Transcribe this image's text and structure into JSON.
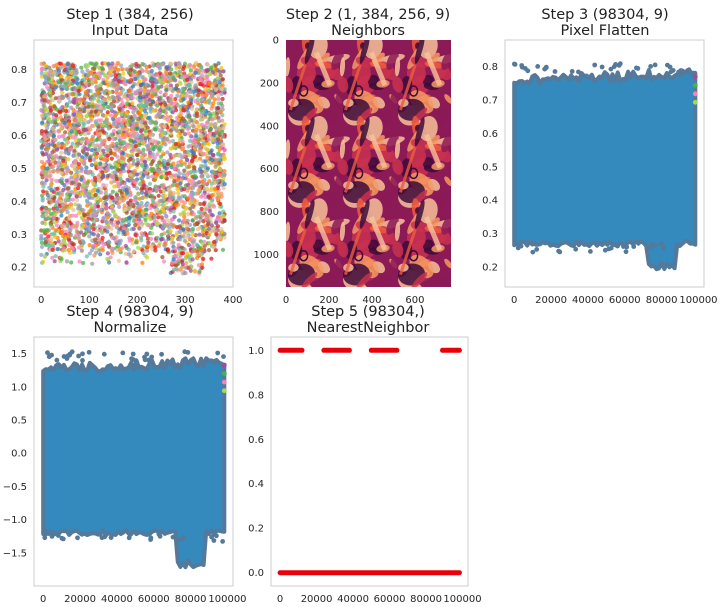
{
  "figure": {
    "background": "#ffffff",
    "frame_color": "#cccccc"
  },
  "chart_data": [
    {
      "id": "step1",
      "type": "scatter",
      "title_line1": "Step 1 (384, 256)",
      "title_line2": "Input Data",
      "xlabel": "",
      "ylabel": "",
      "grid": false,
      "xlim": [
        -15,
        400
      ],
      "ylim": [
        0.14,
        0.89
      ],
      "x_ticks": [
        0,
        100,
        200,
        300,
        400
      ],
      "x_tick_labels": [
        "0",
        "100",
        "200",
        "300",
        "400"
      ],
      "y_ticks": [
        0.2,
        0.3,
        0.4,
        0.5,
        0.6,
        0.7,
        0.8
      ],
      "y_tick_labels": [
        "0.2",
        "0.3",
        "0.4",
        "0.5",
        "0.6",
        "0.7",
        "0.8"
      ],
      "x_range": [
        0,
        383
      ],
      "value_band": [
        0.25,
        0.82
      ],
      "dip": {
        "x_start": 270,
        "x_end": 340,
        "low": 0.18
      },
      "n_series": 256,
      "series_colors": [
        "#e41a1c",
        "#377eb8",
        "#4daf4a",
        "#984ea3",
        "#ff7f00",
        "#f0c419",
        "#a65628",
        "#f781bf",
        "#999999",
        "#66c2a5",
        "#fc8d62",
        "#8da0cb",
        "#e78ac3",
        "#a6d854",
        "#e5c494"
      ]
    },
    {
      "id": "step2",
      "type": "heatmap",
      "title_line1": "Step 2 (1, 384, 256, 9)",
      "title_line2": "Neighbors",
      "xlabel": "",
      "ylabel": "",
      "grid": false,
      "image_shape": [
        1152,
        768
      ],
      "tile_grid": [
        3,
        3
      ],
      "xlim": [
        0,
        768
      ],
      "ylim": [
        1152,
        0
      ],
      "x_ticks": [
        0,
        200,
        400,
        600
      ],
      "x_tick_labels": [
        "0",
        "200",
        "400",
        "600"
      ],
      "y_ticks": [
        0,
        200,
        400,
        600,
        800,
        1000
      ],
      "y_tick_labels": [
        "0",
        "200",
        "400",
        "600",
        "800",
        "1000"
      ],
      "colormap": [
        "#3d0a3a",
        "#8b1a56",
        "#c8314f",
        "#ec5b3e",
        "#f59a63",
        "#f8c29a"
      ]
    },
    {
      "id": "step3",
      "type": "scatter",
      "title_line1": "Step 3 (98304, 9)",
      "title_line2": "Pixel Flatten",
      "xlabel": "",
      "ylabel": "",
      "grid": false,
      "xlim": [
        -5000,
        103000
      ],
      "ylim": [
        0.14,
        0.88
      ],
      "x_ticks": [
        0,
        20000,
        40000,
        60000,
        80000,
        100000
      ],
      "x_tick_labels": [
        "0",
        "20000",
        "40000",
        "60000",
        "80000",
        "100000"
      ],
      "y_ticks": [
        0.2,
        0.3,
        0.4,
        0.5,
        0.6,
        0.7,
        0.8
      ],
      "y_tick_labels": [
        "0.2",
        "0.3",
        "0.4",
        "0.5",
        "0.6",
        "0.7",
        "0.8"
      ],
      "x_range": [
        0,
        98304
      ],
      "band": {
        "low": 0.27,
        "high": 0.78
      },
      "dip": {
        "x_start": 72000,
        "x_end": 88000,
        "low": 0.19
      },
      "fill_color": "#3489bd",
      "edge_color": "#55799a"
    },
    {
      "id": "step4",
      "type": "scatter",
      "title_line1": "Step 4 (98304, 9)",
      "title_line2": "Normalize",
      "xlabel": "",
      "ylabel": "",
      "grid": false,
      "xlim": [
        -5000,
        103000
      ],
      "ylim": [
        -2.0,
        1.75
      ],
      "x_ticks": [
        0,
        20000,
        40000,
        60000,
        80000,
        100000
      ],
      "x_tick_labels": [
        "0",
        "20000",
        "40000",
        "60000",
        "80000",
        "100000"
      ],
      "y_ticks": [
        -1.5,
        -1.0,
        -0.5,
        0.0,
        0.5,
        1.0,
        1.5
      ],
      "y_tick_labels": [
        "−1.5",
        "−1.0",
        "−0.5",
        "0.0",
        "0.5",
        "1.0",
        "1.5"
      ],
      "x_range": [
        0,
        98304
      ],
      "band": {
        "low": -1.2,
        "high": 1.38
      },
      "dip": {
        "x_start": 72000,
        "x_end": 88000,
        "low": -1.72
      },
      "fill_color": "#3489bd",
      "edge_color": "#55799a"
    },
    {
      "id": "step5",
      "type": "scatter",
      "title_line1": "Step 5 (98304,)",
      "title_line2": "NearestNeighbor",
      "xlabel": "",
      "ylabel": "",
      "grid": false,
      "xlim": [
        -5000,
        103000
      ],
      "ylim": [
        -0.06,
        1.06
      ],
      "x_ticks": [
        0,
        20000,
        40000,
        60000,
        80000,
        100000
      ],
      "x_tick_labels": [
        "0",
        "20000",
        "40000",
        "60000",
        "80000",
        "100000"
      ],
      "y_ticks": [
        0.0,
        0.2,
        0.4,
        0.6,
        0.8,
        1.0
      ],
      "y_tick_labels": [
        "0.0",
        "0.2",
        "0.4",
        "0.6",
        "0.8",
        "1.0"
      ],
      "segments": [
        {
          "y": 0,
          "x_start": 0,
          "x_end": 98304
        },
        {
          "y": 1,
          "x_start": 0,
          "x_end": 12000
        },
        {
          "y": 1,
          "x_start": 24000,
          "x_end": 38000
        },
        {
          "y": 1,
          "x_start": 50000,
          "x_end": 64000
        },
        {
          "y": 1,
          "x_start": 89000,
          "x_end": 98304
        }
      ],
      "marker_color": "#e8000b"
    }
  ]
}
